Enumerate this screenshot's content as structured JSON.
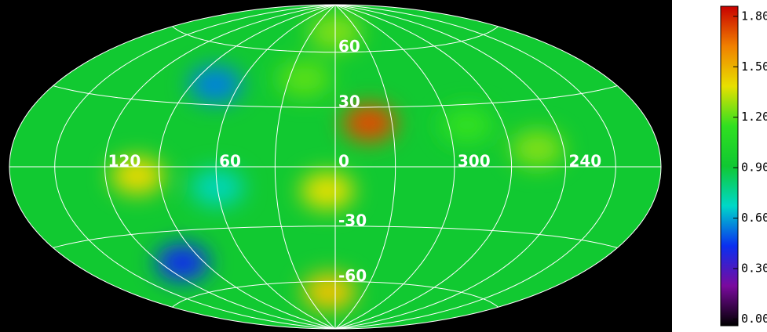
{
  "chart_data": {
    "type": "skymap",
    "lon_ticks": [
      120,
      60,
      0,
      300,
      240
    ],
    "lat_ticks": [
      60,
      30,
      -30,
      -60
    ],
    "background_value": 0.92,
    "hotspots": [
      {
        "lon": 342,
        "lat": 22,
        "value": 1.72
      },
      {
        "lon": 102,
        "lat": -4,
        "value": 1.4
      },
      {
        "lon": 4,
        "lat": -12,
        "value": 1.38
      },
      {
        "lon": 6,
        "lat": -66,
        "value": 1.45
      },
      {
        "lon": 0,
        "lat": 72,
        "value": 1.25
      },
      {
        "lon": 255,
        "lat": 8,
        "value": 1.25
      },
      {
        "lon": 290,
        "lat": 20,
        "value": 1.15
      },
      {
        "lon": 105,
        "lat": -45,
        "value": 0.42
      },
      {
        "lon": 75,
        "lat": 40,
        "value": 0.55
      },
      {
        "lon": 60,
        "lat": -10,
        "value": 0.7
      },
      {
        "lon": 20,
        "lat": 45,
        "value": 1.2
      }
    ],
    "colormap": [
      "#000000",
      "#7a0a9e",
      "#0a2ff0",
      "#00d8c8",
      "#10c832",
      "#30e020",
      "#e8e000",
      "#f08000",
      "#c80000"
    ],
    "clim": [
      -0.04,
      1.86
    ],
    "cticks": [
      {
        "value": 0,
        "label": "0.00"
      },
      {
        "value": 0.3,
        "label": "0.30"
      },
      {
        "value": 0.6,
        "label": "0.60"
      },
      {
        "value": 0.9,
        "label": "0.90"
      },
      {
        "value": 1.2,
        "label": "1.20"
      },
      {
        "value": 1.5,
        "label": "1.50"
      },
      {
        "value": 1.8,
        "label": "1.80"
      }
    ]
  }
}
